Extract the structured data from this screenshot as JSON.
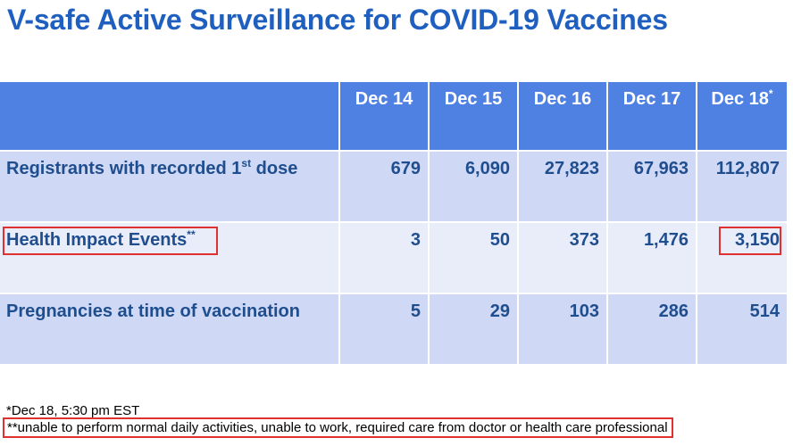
{
  "title": "V-safe Active Surveillance for COVID-19 Vaccines",
  "table": {
    "columns": [
      "Dec 14",
      "Dec 15",
      "Dec 16",
      "Dec 17",
      "Dec 18"
    ],
    "last_column_marker": "*",
    "rows": [
      {
        "label_main": "Registrants with recorded 1",
        "label_sup": "st",
        "label_tail": " dose",
        "values": [
          "679",
          "6,090",
          "27,823",
          "67,963",
          "112,807"
        ]
      },
      {
        "label_main": "Health Impact Events",
        "label_sup": "**",
        "label_tail": "",
        "values": [
          "3",
          "50",
          "373",
          "1,476",
          "3,150"
        ]
      },
      {
        "label_main": "Pregnancies at time of vaccination",
        "label_sup": "",
        "label_tail": "",
        "values": [
          "5",
          "29",
          "103",
          "286",
          "514"
        ]
      }
    ]
  },
  "footnotes": {
    "time_note": "*Dec 18, 5:30 pm EST",
    "definition": "**unable to perform normal daily activities, unable to work, required care from doctor or health care professional"
  },
  "colors": {
    "title": "#1f5fbf",
    "header_bg": "#4f81e3",
    "row_dark": "#cfd8f5",
    "row_light": "#e9edfa",
    "highlight_box": "#e03030"
  }
}
